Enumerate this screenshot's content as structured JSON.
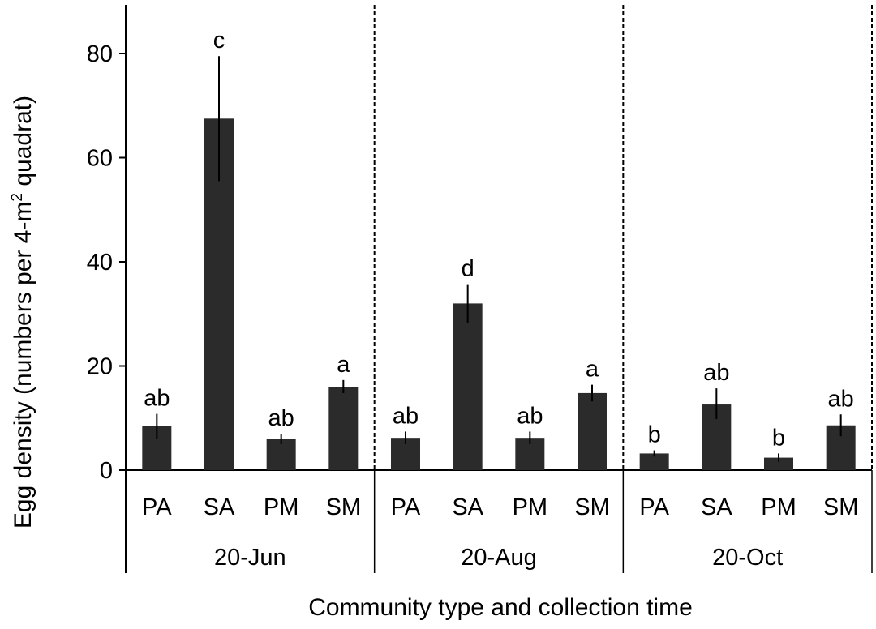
{
  "chart_data": {
    "type": "bar",
    "xlabel": "Community type and collection time",
    "ylabel_main": "Egg density (numbers per 4-m",
    "ylabel_sup": "2",
    "ylabel_end": " quadrat)",
    "ylim": [
      0,
      90
    ],
    "yticks": [
      0,
      20,
      40,
      60,
      80
    ],
    "grid": false,
    "legend": "none",
    "colors": {
      "bar": "#2b2b2b",
      "axis": "#000000"
    },
    "groups": [
      {
        "label": "20-Jun",
        "bars": [
          {
            "category": "PA",
            "value": 8.5,
            "err_low": 6.0,
            "err_high": 10.8,
            "sig": "ab"
          },
          {
            "category": "SA",
            "value": 67.5,
            "err_low": 55.5,
            "err_high": 79.5,
            "sig": "c"
          },
          {
            "category": "PM",
            "value": 6.0,
            "err_low": 5.0,
            "err_high": 7.0,
            "sig": "ab"
          },
          {
            "category": "SM",
            "value": 16.0,
            "err_low": 14.8,
            "err_high": 17.3,
            "sig": "a"
          }
        ]
      },
      {
        "label": "20-Aug",
        "bars": [
          {
            "category": "PA",
            "value": 6.2,
            "err_low": 5.0,
            "err_high": 7.4,
            "sig": "ab"
          },
          {
            "category": "SA",
            "value": 32.0,
            "err_low": 28.3,
            "err_high": 35.7,
            "sig": "d"
          },
          {
            "category": "PM",
            "value": 6.2,
            "err_low": 5.0,
            "err_high": 7.4,
            "sig": "ab"
          },
          {
            "category": "SM",
            "value": 14.8,
            "err_low": 13.2,
            "err_high": 16.4,
            "sig": "a"
          }
        ]
      },
      {
        "label": "20-Oct",
        "bars": [
          {
            "category": "PA",
            "value": 3.2,
            "err_low": 2.6,
            "err_high": 3.8,
            "sig": "b"
          },
          {
            "category": "SA",
            "value": 12.6,
            "err_low": 9.8,
            "err_high": 15.7,
            "sig": "ab"
          },
          {
            "category": "PM",
            "value": 2.4,
            "err_low": 1.6,
            "err_high": 3.2,
            "sig": "b"
          },
          {
            "category": "SM",
            "value": 8.6,
            "err_low": 6.5,
            "err_high": 10.7,
            "sig": "ab"
          }
        ]
      }
    ]
  }
}
